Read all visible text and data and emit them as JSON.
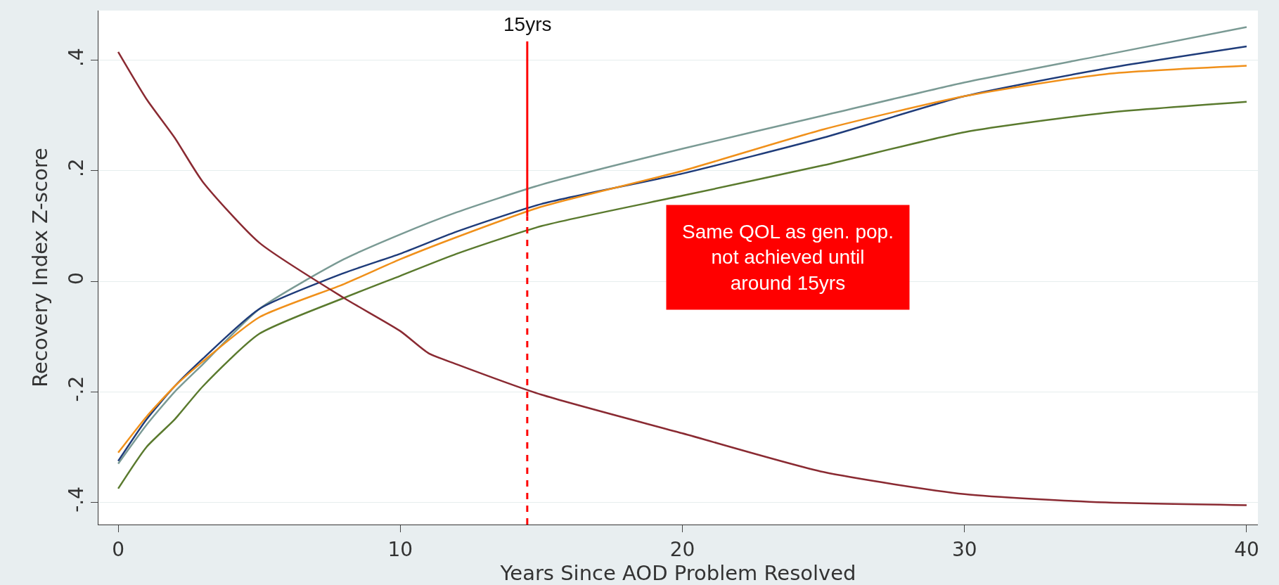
{
  "chart_data": {
    "type": "line",
    "xlabel": "Years Since AOD Problem Resolved",
    "ylabel": "Recovery Index Z-score",
    "xlim": [
      -0.7,
      40.4
    ],
    "ylim": [
      -0.44,
      0.49
    ],
    "xticks": [
      0,
      10,
      20,
      30,
      40
    ],
    "yticks": [
      {
        "value": -0.4,
        "label": "-.4"
      },
      {
        "value": -0.2,
        "label": "-.2"
      },
      {
        "value": 0,
        "label": "0"
      },
      {
        "value": 0.2,
        "label": ".2"
      },
      {
        "value": 0.4,
        "label": ".4"
      }
    ],
    "grid": "y",
    "series": [
      {
        "color": "#7a9a94",
        "x": [
          0,
          1,
          2,
          3,
          5,
          8,
          10,
          12,
          15,
          20,
          25,
          30,
          35,
          40
        ],
        "values": [
          -0.33,
          -0.26,
          -0.2,
          -0.15,
          -0.05,
          0.04,
          0.085,
          0.125,
          0.175,
          0.24,
          0.3,
          0.36,
          0.41,
          0.46
        ]
      },
      {
        "color": "#1f3c7a",
        "x": [
          0,
          1,
          2,
          3,
          5,
          8,
          10,
          12,
          15,
          20,
          25,
          30,
          35,
          40
        ],
        "values": [
          -0.325,
          -0.25,
          -0.19,
          -0.14,
          -0.05,
          0.015,
          0.05,
          0.09,
          0.14,
          0.195,
          0.26,
          0.335,
          0.385,
          0.425
        ]
      },
      {
        "color": "#f0901a",
        "x": [
          0,
          1,
          2,
          3,
          5,
          8,
          10,
          12,
          15,
          20,
          25,
          30,
          35,
          40
        ],
        "values": [
          -0.31,
          -0.245,
          -0.19,
          -0.145,
          -0.065,
          -0.005,
          0.04,
          0.08,
          0.135,
          0.2,
          0.275,
          0.335,
          0.375,
          0.39
        ]
      },
      {
        "color": "#5a7a2e",
        "x": [
          0,
          1,
          2,
          3,
          5,
          8,
          10,
          12,
          15,
          20,
          25,
          30,
          35,
          40
        ],
        "values": [
          -0.375,
          -0.3,
          -0.25,
          -0.19,
          -0.095,
          -0.03,
          0.01,
          0.05,
          0.1,
          0.155,
          0.21,
          0.27,
          0.305,
          0.325
        ]
      },
      {
        "color": "#8a2a32",
        "x": [
          0,
          1,
          2,
          3,
          5,
          8,
          10,
          11,
          12,
          15,
          20,
          25,
          30,
          35,
          40
        ],
        "values": [
          0.415,
          0.33,
          0.26,
          0.18,
          0.07,
          -0.03,
          -0.09,
          -0.13,
          -0.15,
          -0.205,
          -0.275,
          -0.345,
          -0.385,
          -0.4,
          -0.405
        ]
      }
    ],
    "ref_lines": [
      {
        "axis": "x",
        "value": 14.5,
        "label": "15yrs",
        "color": "#ff0000",
        "line_style": "dashed"
      }
    ],
    "annotations": [
      "Same QOL as gen. pop.\nnot achieved until\naround 15yrs"
    ]
  }
}
